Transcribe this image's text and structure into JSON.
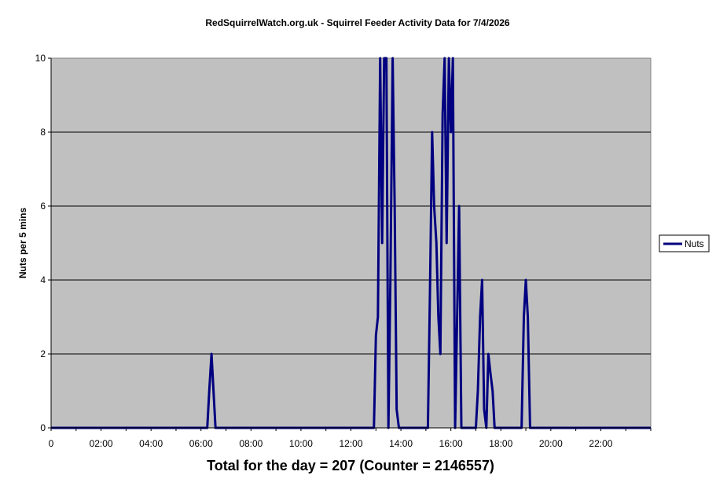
{
  "chart_data": {
    "type": "line",
    "title": "RedSquirrelWatch.org.uk - Squirrel Feeder Activity Data for 7/4/2026",
    "ylabel": "Nuts per 5 mins",
    "xlabel": "",
    "footer": "Total for the day = 207  (Counter = 2146557)",
    "ylim": [
      0,
      10
    ],
    "yticks": [
      "0",
      "2",
      "4",
      "6",
      "8",
      "10"
    ],
    "xticks": [
      "0",
      "02:00",
      "04:00",
      "06:00",
      "08:00",
      "10:00",
      "12:00",
      "14:00",
      "16:00",
      "18:00",
      "20:00",
      "22:00"
    ],
    "xlim_hours": [
      0,
      24
    ],
    "grid": "horizontal",
    "legend_position": "right",
    "series": [
      {
        "name": "Nuts",
        "color": "#000080",
        "points": [
          [
            0.0,
            0
          ],
          [
            6.25,
            0
          ],
          [
            6.33,
            1
          ],
          [
            6.42,
            2
          ],
          [
            6.5,
            1
          ],
          [
            6.58,
            0
          ],
          [
            12.92,
            0
          ],
          [
            13.0,
            2.5
          ],
          [
            13.08,
            3
          ],
          [
            13.17,
            10
          ],
          [
            13.25,
            5
          ],
          [
            13.33,
            10
          ],
          [
            13.42,
            10
          ],
          [
            13.5,
            0
          ],
          [
            13.58,
            4
          ],
          [
            13.67,
            10
          ],
          [
            13.75,
            6
          ],
          [
            13.83,
            0.5
          ],
          [
            13.92,
            0
          ],
          [
            15.08,
            0
          ],
          [
            15.17,
            4
          ],
          [
            15.25,
            8
          ],
          [
            15.33,
            6
          ],
          [
            15.42,
            5
          ],
          [
            15.5,
            3
          ],
          [
            15.58,
            2
          ],
          [
            15.67,
            8.5
          ],
          [
            15.75,
            10
          ],
          [
            15.83,
            5
          ],
          [
            15.92,
            10
          ],
          [
            16.0,
            8
          ],
          [
            16.08,
            10
          ],
          [
            16.17,
            0
          ],
          [
            16.25,
            3
          ],
          [
            16.33,
            6
          ],
          [
            16.42,
            0
          ],
          [
            16.5,
            0
          ],
          [
            17.0,
            0
          ],
          [
            17.08,
            1
          ],
          [
            17.17,
            3
          ],
          [
            17.25,
            4
          ],
          [
            17.33,
            0.5
          ],
          [
            17.42,
            0
          ],
          [
            17.5,
            2
          ],
          [
            17.58,
            1.5
          ],
          [
            17.67,
            1
          ],
          [
            17.75,
            0
          ],
          [
            18.83,
            0
          ],
          [
            18.92,
            3
          ],
          [
            19.0,
            4
          ],
          [
            19.08,
            3
          ],
          [
            19.17,
            0
          ],
          [
            24.0,
            0
          ]
        ]
      }
    ]
  }
}
